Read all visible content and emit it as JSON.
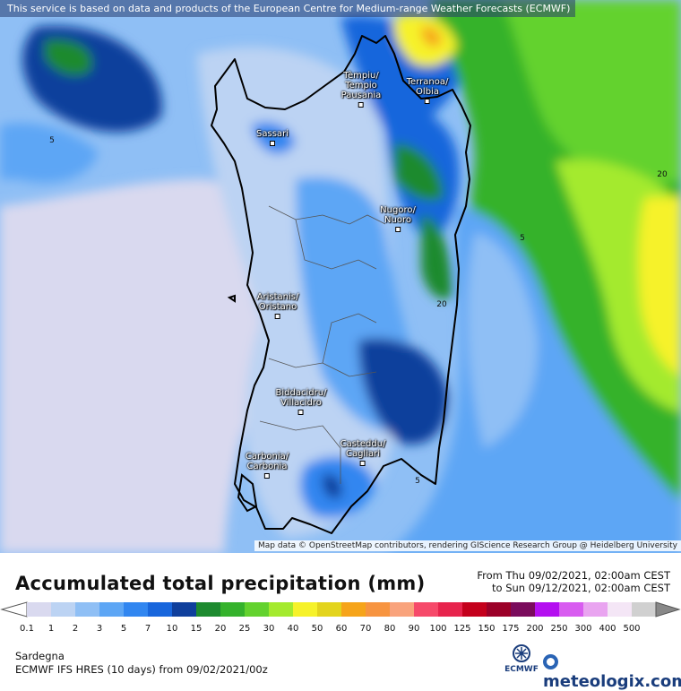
{
  "map": {
    "disclaimer": "This service is based on data and products of the European Centre for Medium-range Weather Forecasts (ECMWF)",
    "attribution": "Map data © OpenStreetMap contributors, rendering GIScience Research Group @ Heidelberg University",
    "cities": [
      {
        "name": "Tèmpiu/ Tempio Pausania",
        "line1": "Tèmpiu/",
        "line2": "Tempio",
        "line3": "Pausania"
      },
      {
        "name": "Terranoa/ Olbia",
        "line1": "Terranoa/",
        "line2": "Olbia",
        "line3": ""
      },
      {
        "name": "Sassari",
        "line1": "Sassari",
        "line2": "",
        "line3": ""
      },
      {
        "name": "Nugoro/ Nuoro",
        "line1": "Nugoro/",
        "line2": "Nuoro",
        "line3": ""
      },
      {
        "name": "Aristanis/ Oristano",
        "line1": "Aristanis/",
        "line2": "Oristano",
        "line3": ""
      },
      {
        "name": "Biddacidru/ Villacidro",
        "line1": "Biddacidru/",
        "line2": "Villacidro",
        "line3": ""
      },
      {
        "name": "Casteddu/ Cagliari",
        "line1": "Casteddu/",
        "line2": "Cagliari",
        "line3": ""
      },
      {
        "name": "Carbonia/ Carbonia",
        "line1": "Carbonia/",
        "line2": "Carbonia",
        "line3": ""
      }
    ],
    "contour_labels": [
      "5",
      "20",
      "5",
      "20",
      "5"
    ]
  },
  "footer": {
    "title": "Accumulated total precipitation (mm)",
    "period_from": "From Thu 09/02/2021, 02:00am CEST",
    "period_to": "to Sun 09/12/2021, 02:00am CEST",
    "region": "Sardegna",
    "model": "ECMWF IFS HRES (10 days) from 09/02/2021/00z",
    "ecmwf_logo_text": "ECMWF",
    "brand": "meteologix.com"
  },
  "legend": {
    "ticks": [
      "0.1",
      "1",
      "2",
      "3",
      "5",
      "7",
      "10",
      "15",
      "20",
      "25",
      "30",
      "40",
      "50",
      "60",
      "70",
      "80",
      "90",
      "100",
      "125",
      "150",
      "175",
      "200",
      "250",
      "300",
      "400",
      "500"
    ],
    "colors": [
      "#d9d9ef",
      "#bcd3f3",
      "#8fbff5",
      "#5da6f5",
      "#3186f0",
      "#1866dc",
      "#0f3f9c",
      "#1d8a2f",
      "#35b22c",
      "#63d22e",
      "#a4ea2e",
      "#f6f22a",
      "#e3d41d",
      "#f6a41a",
      "#f79440",
      "#f9a37c",
      "#f64a6a",
      "#e7244d",
      "#c4001c",
      "#9b0028",
      "#7a0b5c",
      "#b40ff0",
      "#d85cf0",
      "#e9a4f0",
      "#f4e6f6",
      "#d0d0d0"
    ]
  }
}
